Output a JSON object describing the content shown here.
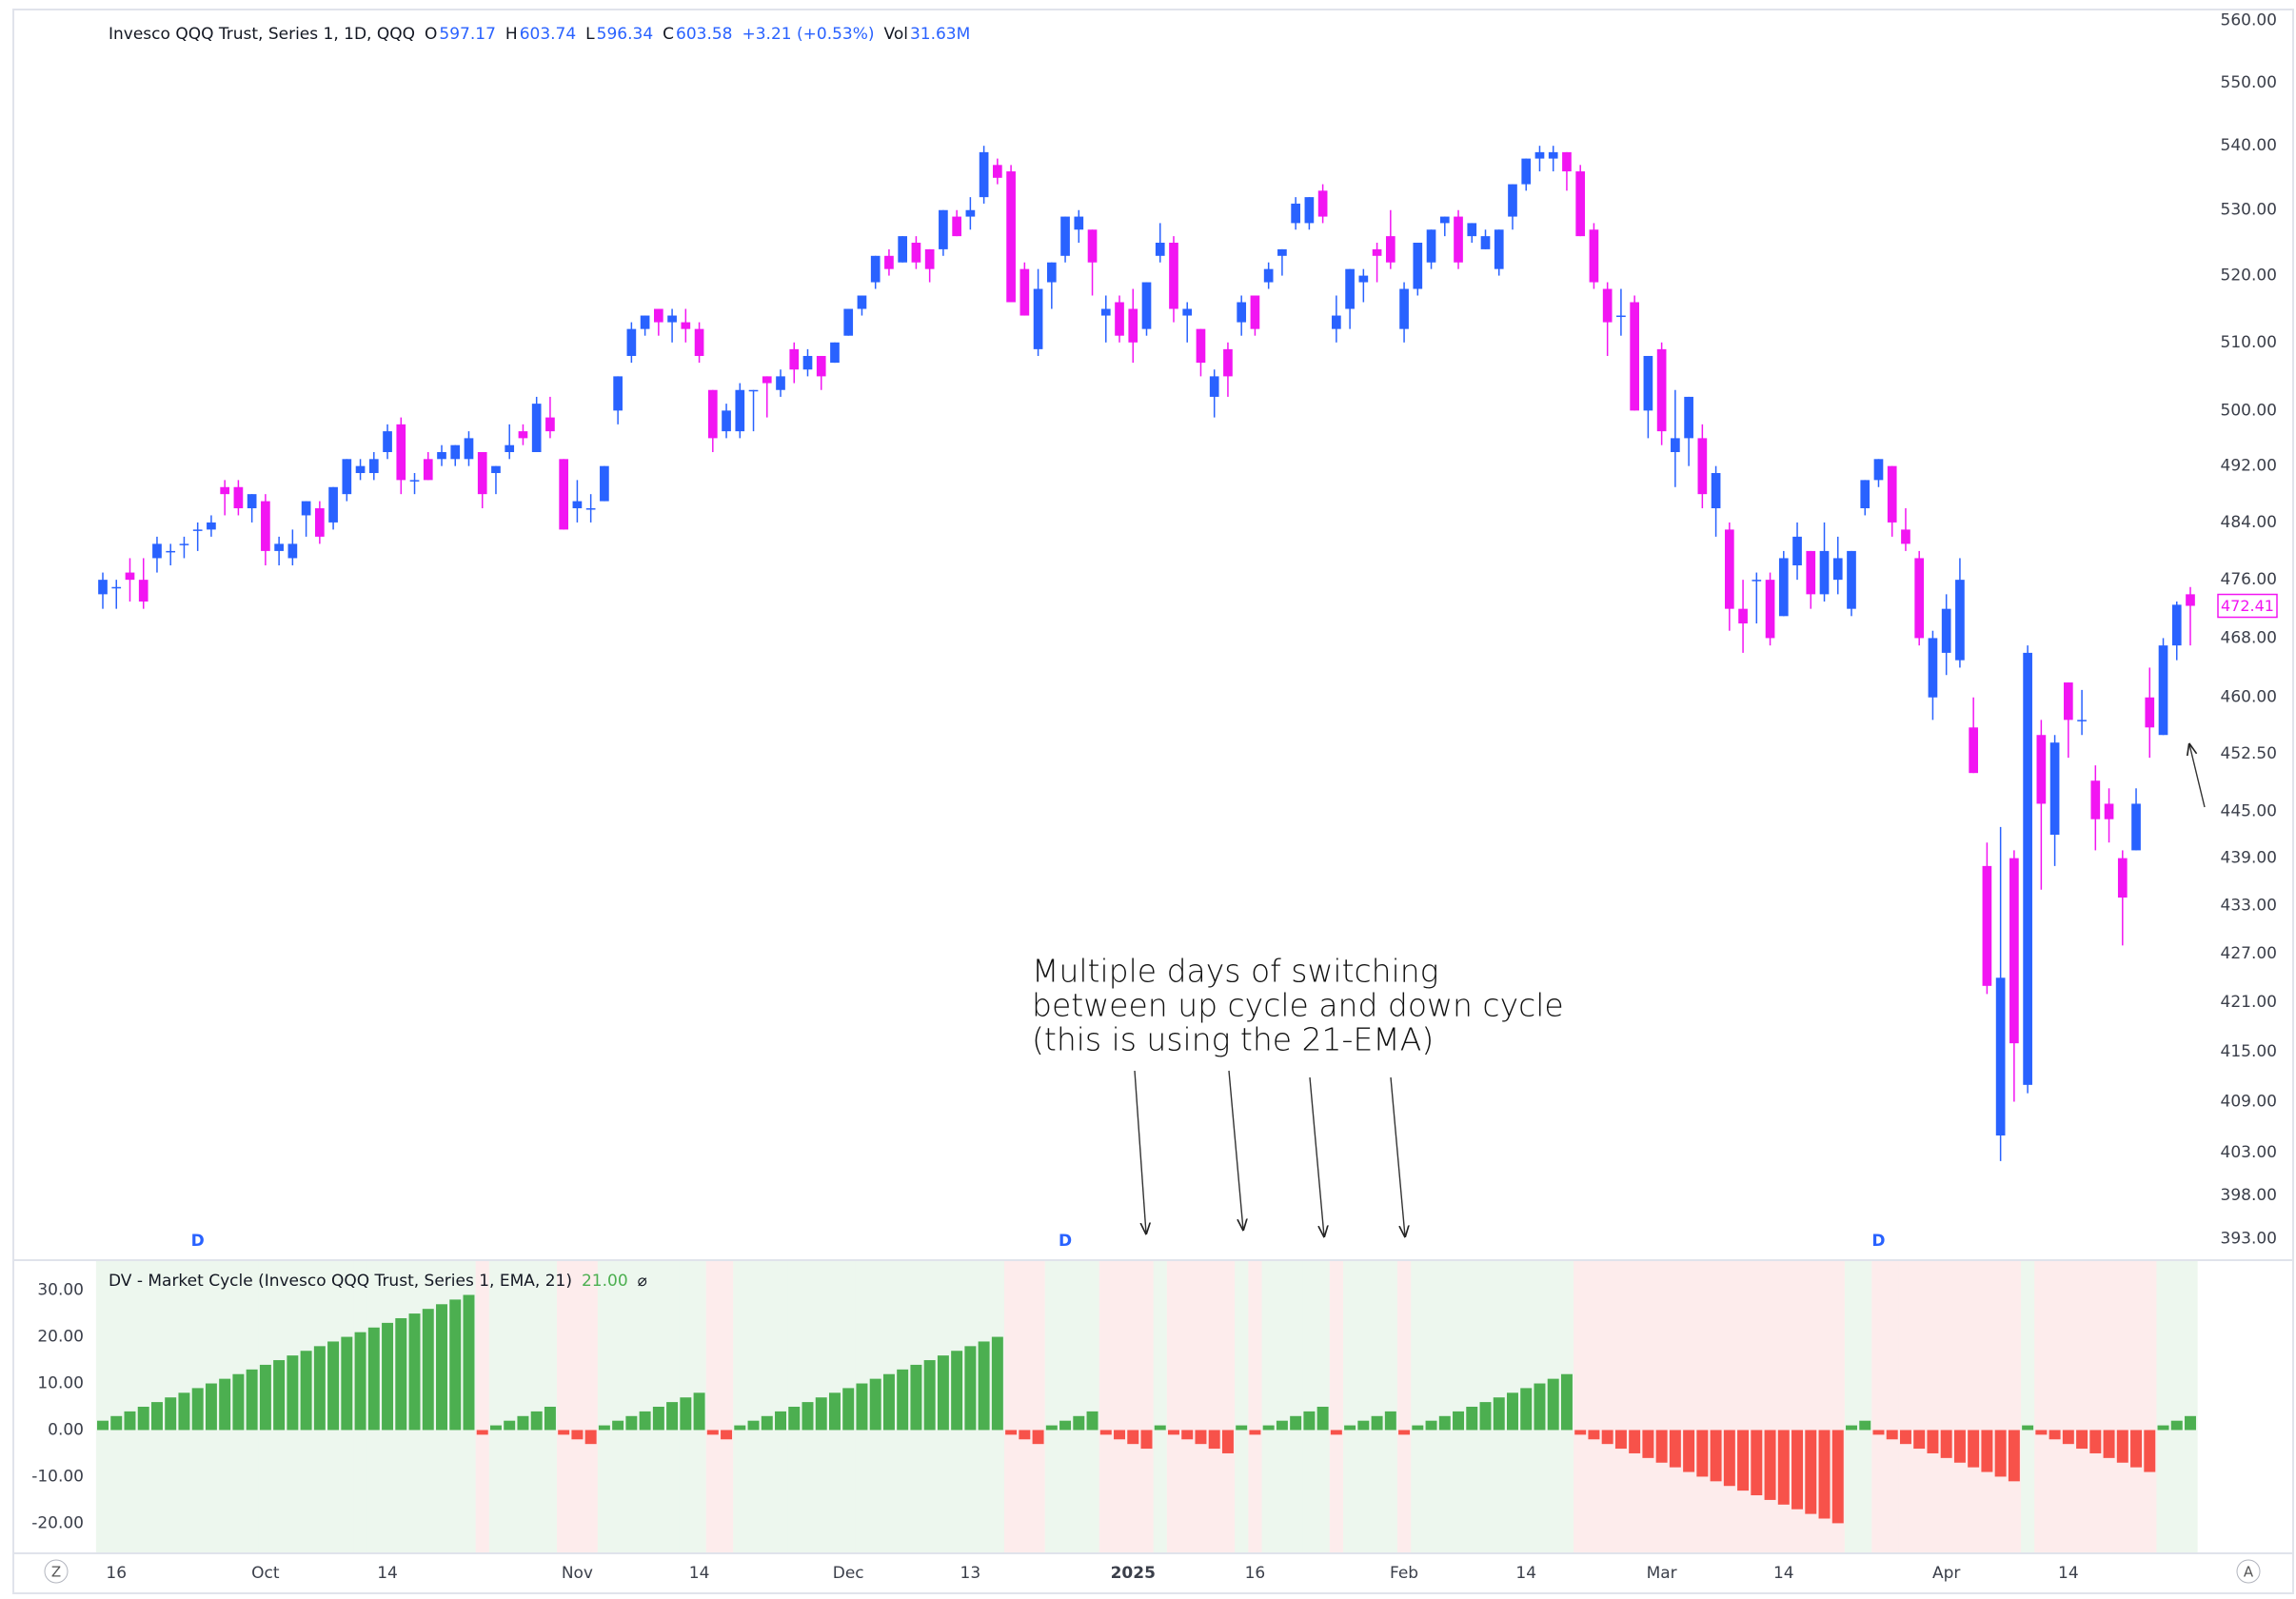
{
  "chart_data": [
    {
      "type": "candlestick",
      "title": "Invesco QQQ Trust, Series 1, 1D, QQQ",
      "legend": [
        {
          "label": "O",
          "value": 597.17
        },
        {
          "label": "H",
          "value": 603.74
        },
        {
          "label": "L",
          "value": 596.34
        },
        {
          "label": "C",
          "value": 603.58
        }
      ],
      "change": "+3.21 (+0.53%)",
      "volume_label": "Vol",
      "volume": "31.63M",
      "up_color": "#2962ff",
      "down_color": "#f215f2",
      "log": true,
      "grid": false,
      "ylim": [
        390.8,
        561.2
      ],
      "yticks": [
        {
          "value": 560,
          "label": "560.00"
        },
        {
          "value": 550,
          "label": "550.00"
        },
        {
          "value": 540,
          "label": "540.00"
        },
        {
          "value": 530,
          "label": "530.00"
        },
        {
          "value": 520,
          "label": "520.00"
        },
        {
          "value": 510,
          "label": "510.00"
        },
        {
          "value": 500,
          "label": "500.00"
        },
        {
          "value": 492,
          "label": "492.00"
        },
        {
          "value": 484,
          "label": "484.00"
        },
        {
          "value": 476,
          "label": "476.00"
        },
        {
          "value": 468,
          "label": "468.00"
        },
        {
          "value": 460,
          "label": "460.00"
        },
        {
          "value": 452.5,
          "label": "452.50"
        },
        {
          "value": 445,
          "label": "445.00"
        },
        {
          "value": 439,
          "label": "439.00"
        },
        {
          "value": 433,
          "label": "433.00"
        },
        {
          "value": 427,
          "label": "427.00"
        },
        {
          "value": 421,
          "label": "421.00"
        },
        {
          "value": 415,
          "label": "415.00"
        },
        {
          "value": 409,
          "label": "409.00"
        },
        {
          "value": 403,
          "label": "403.00"
        },
        {
          "value": 398,
          "label": "398.00"
        },
        {
          "value": 393,
          "label": "393.00"
        }
      ],
      "events": [
        {
          "value": 7,
          "label": "D"
        },
        {
          "value": 71,
          "label": "D"
        },
        {
          "value": 131,
          "label": "D"
        }
      ],
      "annotation": [
        "Multiple days of switching",
        "between up cycle and down cycle",
        "(this is using the 21-EMA)"
      ],
      "ohlc": [
        [
          474,
          477,
          472,
          476
        ],
        [
          475,
          476,
          472,
          475
        ],
        [
          477,
          479,
          473,
          476
        ],
        [
          476,
          479,
          472,
          473
        ],
        [
          479,
          482,
          477,
          481
        ],
        [
          480,
          481,
          478,
          480
        ],
        [
          481,
          482,
          479,
          481
        ],
        [
          483,
          484,
          480,
          483
        ],
        [
          483,
          485,
          482,
          484
        ],
        [
          489,
          490,
          485,
          488
        ],
        [
          489,
          490,
          485,
          486
        ],
        [
          486,
          488,
          484,
          488
        ],
        [
          487,
          488,
          478,
          480
        ],
        [
          480,
          482,
          478,
          481
        ],
        [
          479,
          483,
          478,
          481
        ],
        [
          485,
          487,
          482,
          487
        ],
        [
          486,
          487,
          481,
          482
        ],
        [
          484,
          489,
          483,
          489
        ],
        [
          488,
          493,
          487,
          493
        ],
        [
          491,
          493,
          490,
          492
        ],
        [
          491,
          494,
          490,
          493
        ],
        [
          494,
          498,
          493,
          497
        ],
        [
          498,
          499,
          488,
          490
        ],
        [
          490,
          491,
          488,
          490
        ],
        [
          493,
          494,
          490,
          490
        ],
        [
          493,
          495,
          492,
          494
        ],
        [
          493,
          495,
          492,
          495
        ],
        [
          493,
          497,
          492,
          496
        ],
        [
          494,
          494,
          486,
          488
        ],
        [
          491,
          492,
          488,
          492
        ],
        [
          494,
          498,
          493,
          495
        ],
        [
          497,
          498,
          495,
          496
        ],
        [
          494,
          502,
          494,
          501
        ],
        [
          499,
          502,
          496,
          497
        ],
        [
          493,
          493,
          483,
          483
        ],
        [
          486,
          490,
          484,
          487
        ],
        [
          486,
          488,
          484,
          486
        ],
        [
          487,
          492,
          487,
          492
        ],
        [
          500,
          505,
          498,
          505
        ],
        [
          508,
          513,
          507,
          512
        ],
        [
          512,
          514,
          511,
          514
        ],
        [
          515,
          515,
          511,
          513
        ],
        [
          513,
          515,
          510,
          514
        ],
        [
          513,
          515,
          510,
          512
        ],
        [
          512,
          513,
          507,
          508
        ],
        [
          503,
          503,
          494,
          496
        ],
        [
          497,
          501,
          496,
          500
        ],
        [
          497,
          504,
          496,
          503
        ],
        [
          503,
          503,
          497,
          503
        ],
        [
          505,
          505,
          499,
          504
        ],
        [
          503,
          506,
          502,
          505
        ],
        [
          509,
          510,
          504,
          506
        ],
        [
          506,
          509,
          505,
          508
        ],
        [
          508,
          508,
          503,
          505
        ],
        [
          507,
          510,
          507,
          510
        ],
        [
          511,
          515,
          511,
          515
        ],
        [
          515,
          517,
          514,
          517
        ],
        [
          519,
          523,
          518,
          523
        ],
        [
          523,
          524,
          520,
          521
        ],
        [
          522,
          526,
          522,
          526
        ],
        [
          525,
          526,
          521,
          522
        ],
        [
          524,
          524,
          519,
          521
        ],
        [
          524,
          530,
          523,
          530
        ],
        [
          529,
          530,
          526,
          526
        ],
        [
          529,
          532,
          527,
          530
        ],
        [
          532,
          540,
          531,
          539
        ],
        [
          537,
          538,
          534,
          535
        ],
        [
          536,
          537,
          516,
          516
        ],
        [
          521,
          522,
          514,
          514
        ],
        [
          509,
          521,
          508,
          518
        ],
        [
          519,
          522,
          515,
          522
        ],
        [
          523,
          529,
          522,
          529
        ],
        [
          527,
          530,
          525,
          529
        ],
        [
          527,
          527,
          517,
          522
        ],
        [
          514,
          517,
          510,
          515
        ],
        [
          516,
          517,
          510,
          511
        ],
        [
          515,
          518,
          507,
          510
        ],
        [
          512,
          519,
          511,
          519
        ],
        [
          523,
          528,
          522,
          525
        ],
        [
          525,
          526,
          513,
          515
        ],
        [
          514,
          516,
          510,
          515
        ],
        [
          512,
          512,
          505,
          507
        ],
        [
          502,
          506,
          499,
          505
        ],
        [
          509,
          510,
          502,
          505
        ],
        [
          513,
          517,
          511,
          516
        ],
        [
          517,
          517,
          511,
          512
        ],
        [
          519,
          522,
          518,
          521
        ],
        [
          523,
          524,
          520,
          524
        ],
        [
          528,
          532,
          527,
          531
        ],
        [
          528,
          532,
          527,
          532
        ],
        [
          533,
          534,
          528,
          529
        ],
        [
          512,
          517,
          510,
          514
        ],
        [
          515,
          521,
          512,
          521
        ],
        [
          519,
          521,
          516,
          520
        ],
        [
          524,
          525,
          519,
          523
        ],
        [
          526,
          530,
          521,
          522
        ],
        [
          512,
          519,
          510,
          518
        ],
        [
          518,
          525,
          517,
          525
        ],
        [
          522,
          527,
          521,
          527
        ],
        [
          528,
          529,
          526,
          529
        ],
        [
          529,
          530,
          521,
          522
        ],
        [
          526,
          528,
          525,
          528
        ],
        [
          524,
          527,
          524,
          526
        ],
        [
          521,
          527,
          520,
          527
        ],
        [
          529,
          534,
          527,
          534
        ],
        [
          534,
          538,
          533,
          538
        ],
        [
          538,
          540,
          536,
          539
        ],
        [
          538,
          540,
          536,
          539
        ],
        [
          539,
          539,
          533,
          536
        ],
        [
          536,
          537,
          526,
          526
        ],
        [
          527,
          528,
          518,
          519
        ],
        [
          518,
          519,
          508,
          513
        ],
        [
          514,
          518,
          511,
          514
        ],
        [
          516,
          517,
          500,
          500
        ],
        [
          500,
          508,
          496,
          508
        ],
        [
          509,
          510,
          495,
          497
        ],
        [
          494,
          503,
          489,
          496
        ],
        [
          496,
          502,
          492,
          502
        ],
        [
          496,
          498,
          486,
          488
        ],
        [
          486,
          492,
          482,
          491
        ],
        [
          483,
          484,
          469,
          472
        ],
        [
          472,
          476,
          466,
          470
        ],
        [
          476,
          477,
          470,
          476
        ],
        [
          476,
          477,
          467,
          468
        ],
        [
          471,
          480,
          471,
          479
        ],
        [
          478,
          484,
          476,
          482
        ],
        [
          480,
          480,
          472,
          474
        ],
        [
          474,
          484,
          473,
          480
        ],
        [
          476,
          482,
          474,
          479
        ],
        [
          472,
          480,
          471,
          480
        ],
        [
          486,
          490,
          485,
          490
        ],
        [
          490,
          493,
          489,
          493
        ],
        [
          492,
          492,
          482,
          484
        ],
        [
          483,
          486,
          480,
          481
        ],
        [
          479,
          480,
          467,
          468
        ],
        [
          460,
          469,
          457,
          468
        ],
        [
          466,
          474,
          463,
          472
        ],
        [
          465,
          479,
          464,
          476
        ],
        [
          456,
          460,
          450,
          450
        ],
        [
          438,
          441,
          422,
          423
        ],
        [
          405,
          443,
          402,
          424
        ],
        [
          439,
          440,
          409,
          416
        ],
        [
          411,
          467,
          410,
          466
        ],
        [
          455,
          457,
          435,
          446
        ],
        [
          442,
          455,
          438,
          454
        ],
        [
          462,
          462,
          452,
          457
        ],
        [
          457,
          461,
          455,
          457
        ],
        [
          449,
          451,
          440,
          444
        ],
        [
          446,
          448,
          441,
          444
        ],
        [
          439,
          440,
          428,
          434
        ],
        [
          440,
          448,
          440,
          446
        ],
        [
          460,
          464,
          452,
          456
        ],
        [
          455,
          468,
          455,
          467
        ],
        [
          467,
          473,
          465,
          472.56
        ],
        [
          474,
          475,
          467,
          472.41
        ]
      ]
    },
    {
      "type": "bar",
      "title": "DV - Market Cycle (Invesco QQQ Trust, Series 1, EMA, 21)",
      "parameter": "21.00",
      "symbol": "⌀",
      "positive_color": "#4caf50",
      "negative_color": "#f7524a",
      "positive_shade": "#edf7ee",
      "negative_shade": "#fdecec",
      "ylim": [
        -26.25,
        36.25
      ],
      "yticks": [
        {
          "value": 30,
          "label": "30.00"
        },
        {
          "value": 20,
          "label": "20.00"
        },
        {
          "value": 10,
          "label": "10.00"
        },
        {
          "value": 0,
          "label": "0.00"
        },
        {
          "value": -10,
          "label": "-10.00"
        },
        {
          "value": -20,
          "label": "-20.00"
        }
      ],
      "xticks": [
        {
          "value": 1,
          "label": "16"
        },
        {
          "value": 12,
          "label": "Oct"
        },
        {
          "value": 21,
          "label": "14"
        },
        {
          "value": 35,
          "label": "Nov"
        },
        {
          "value": 44,
          "label": "14"
        },
        {
          "value": 55,
          "label": "Dec"
        },
        {
          "value": 64,
          "label": "13"
        },
        {
          "value": 76,
          "label": "2025"
        },
        {
          "value": 85,
          "label": "16"
        },
        {
          "value": 96,
          "label": "Feb"
        },
        {
          "value": 105,
          "label": "14"
        },
        {
          "value": 115,
          "label": "Mar"
        },
        {
          "value": 124,
          "label": "14"
        },
        {
          "value": 136,
          "label": "Apr"
        },
        {
          "value": 145,
          "label": "14"
        }
      ],
      "corner_labels": [
        "Z",
        "A"
      ],
      "values": [
        2,
        3,
        4,
        5,
        6,
        7,
        8,
        9,
        10,
        11,
        12,
        13,
        14,
        15,
        16,
        17,
        18,
        19,
        20,
        21,
        22,
        23,
        24,
        25,
        26,
        27,
        28,
        29,
        -1,
        1,
        2,
        3,
        4,
        5,
        -1,
        -2,
        -3,
        1,
        2,
        3,
        4,
        5,
        6,
        7,
        8,
        -1,
        -2,
        1,
        2,
        3,
        4,
        5,
        6,
        7,
        8,
        9,
        10,
        11,
        12,
        13,
        14,
        15,
        16,
        17,
        18,
        19,
        20,
        -1,
        -2,
        -3,
        1,
        2,
        3,
        4,
        -1,
        -2,
        -3,
        -4,
        1,
        -1,
        -2,
        -3,
        -4,
        -5,
        1,
        -1,
        1,
        2,
        3,
        4,
        5,
        -1,
        1,
        2,
        3,
        4,
        -1,
        1,
        2,
        3,
        4,
        5,
        6,
        7,
        8,
        9,
        10,
        11,
        12,
        -1,
        -2,
        -3,
        -4,
        -5,
        -6,
        -7,
        -8,
        -9,
        -10,
        -11,
        -12,
        -13,
        -14,
        -15,
        -16,
        -17,
        -18,
        -19,
        -20,
        1,
        2,
        -1,
        -2,
        -3,
        -4,
        -5,
        -6,
        -7,
        -8,
        -9,
        -10,
        -11,
        1,
        -1,
        -2,
        -3,
        -4,
        -5,
        -6,
        -7,
        -8,
        -9,
        1,
        2,
        3
      ]
    }
  ]
}
